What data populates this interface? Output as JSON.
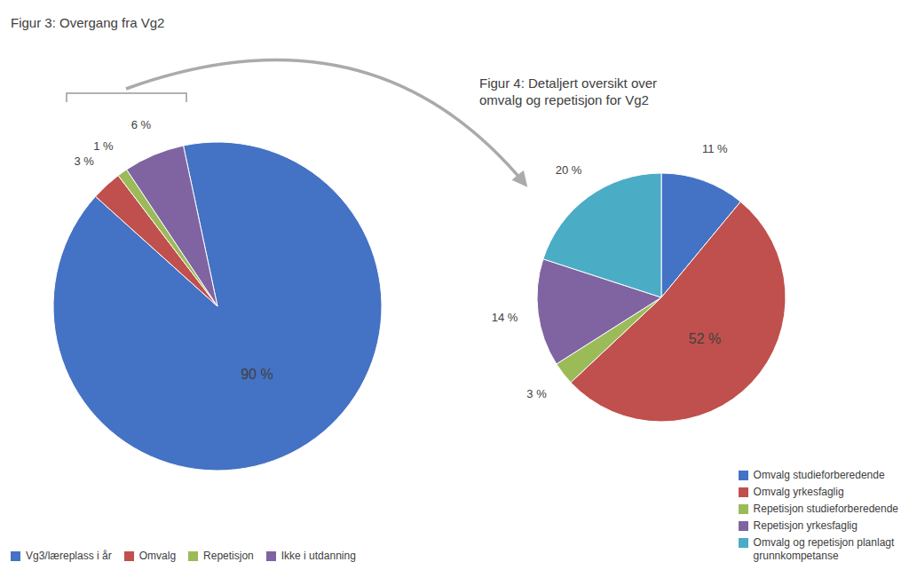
{
  "chart_data": [
    {
      "type": "pie",
      "title": "Figur 3: Overgang fra Vg2",
      "categories": [
        "Vg3/læreplass i år",
        "Omvalg",
        "Repetisjon",
        "Ikke i utdanning"
      ],
      "values": [
        90,
        3,
        1,
        6
      ],
      "value_labels": [
        "90 %",
        "3 %",
        "1 %",
        "6 %"
      ],
      "colors": [
        "#4472C4",
        "#C0504D",
        "#9BBB59",
        "#8064A2"
      ],
      "data_labels": true,
      "legend": "lower left"
    },
    {
      "type": "pie",
      "title": "Figur 4: Detaljert oversikt over\nomvalg og repetisjon for Vg2",
      "categories": [
        "Omvalg studieforberedende",
        "Omvalg yrkesfaglig",
        "Repetisjon studieforberedende",
        "Repetisjon yrkesfaglig",
        "Omvalg og repetisjon planlagt\ngrunnkompetanse"
      ],
      "values": [
        11,
        52,
        3,
        14,
        20
      ],
      "value_labels": [
        "11 %",
        "52 %",
        "3 %",
        "14 %",
        "20 %"
      ],
      "colors": [
        "#4472C4",
        "#C0504D",
        "#9BBB59",
        "#8064A2",
        "#4BACC6"
      ],
      "data_labels": true,
      "legend": "lower right"
    }
  ]
}
